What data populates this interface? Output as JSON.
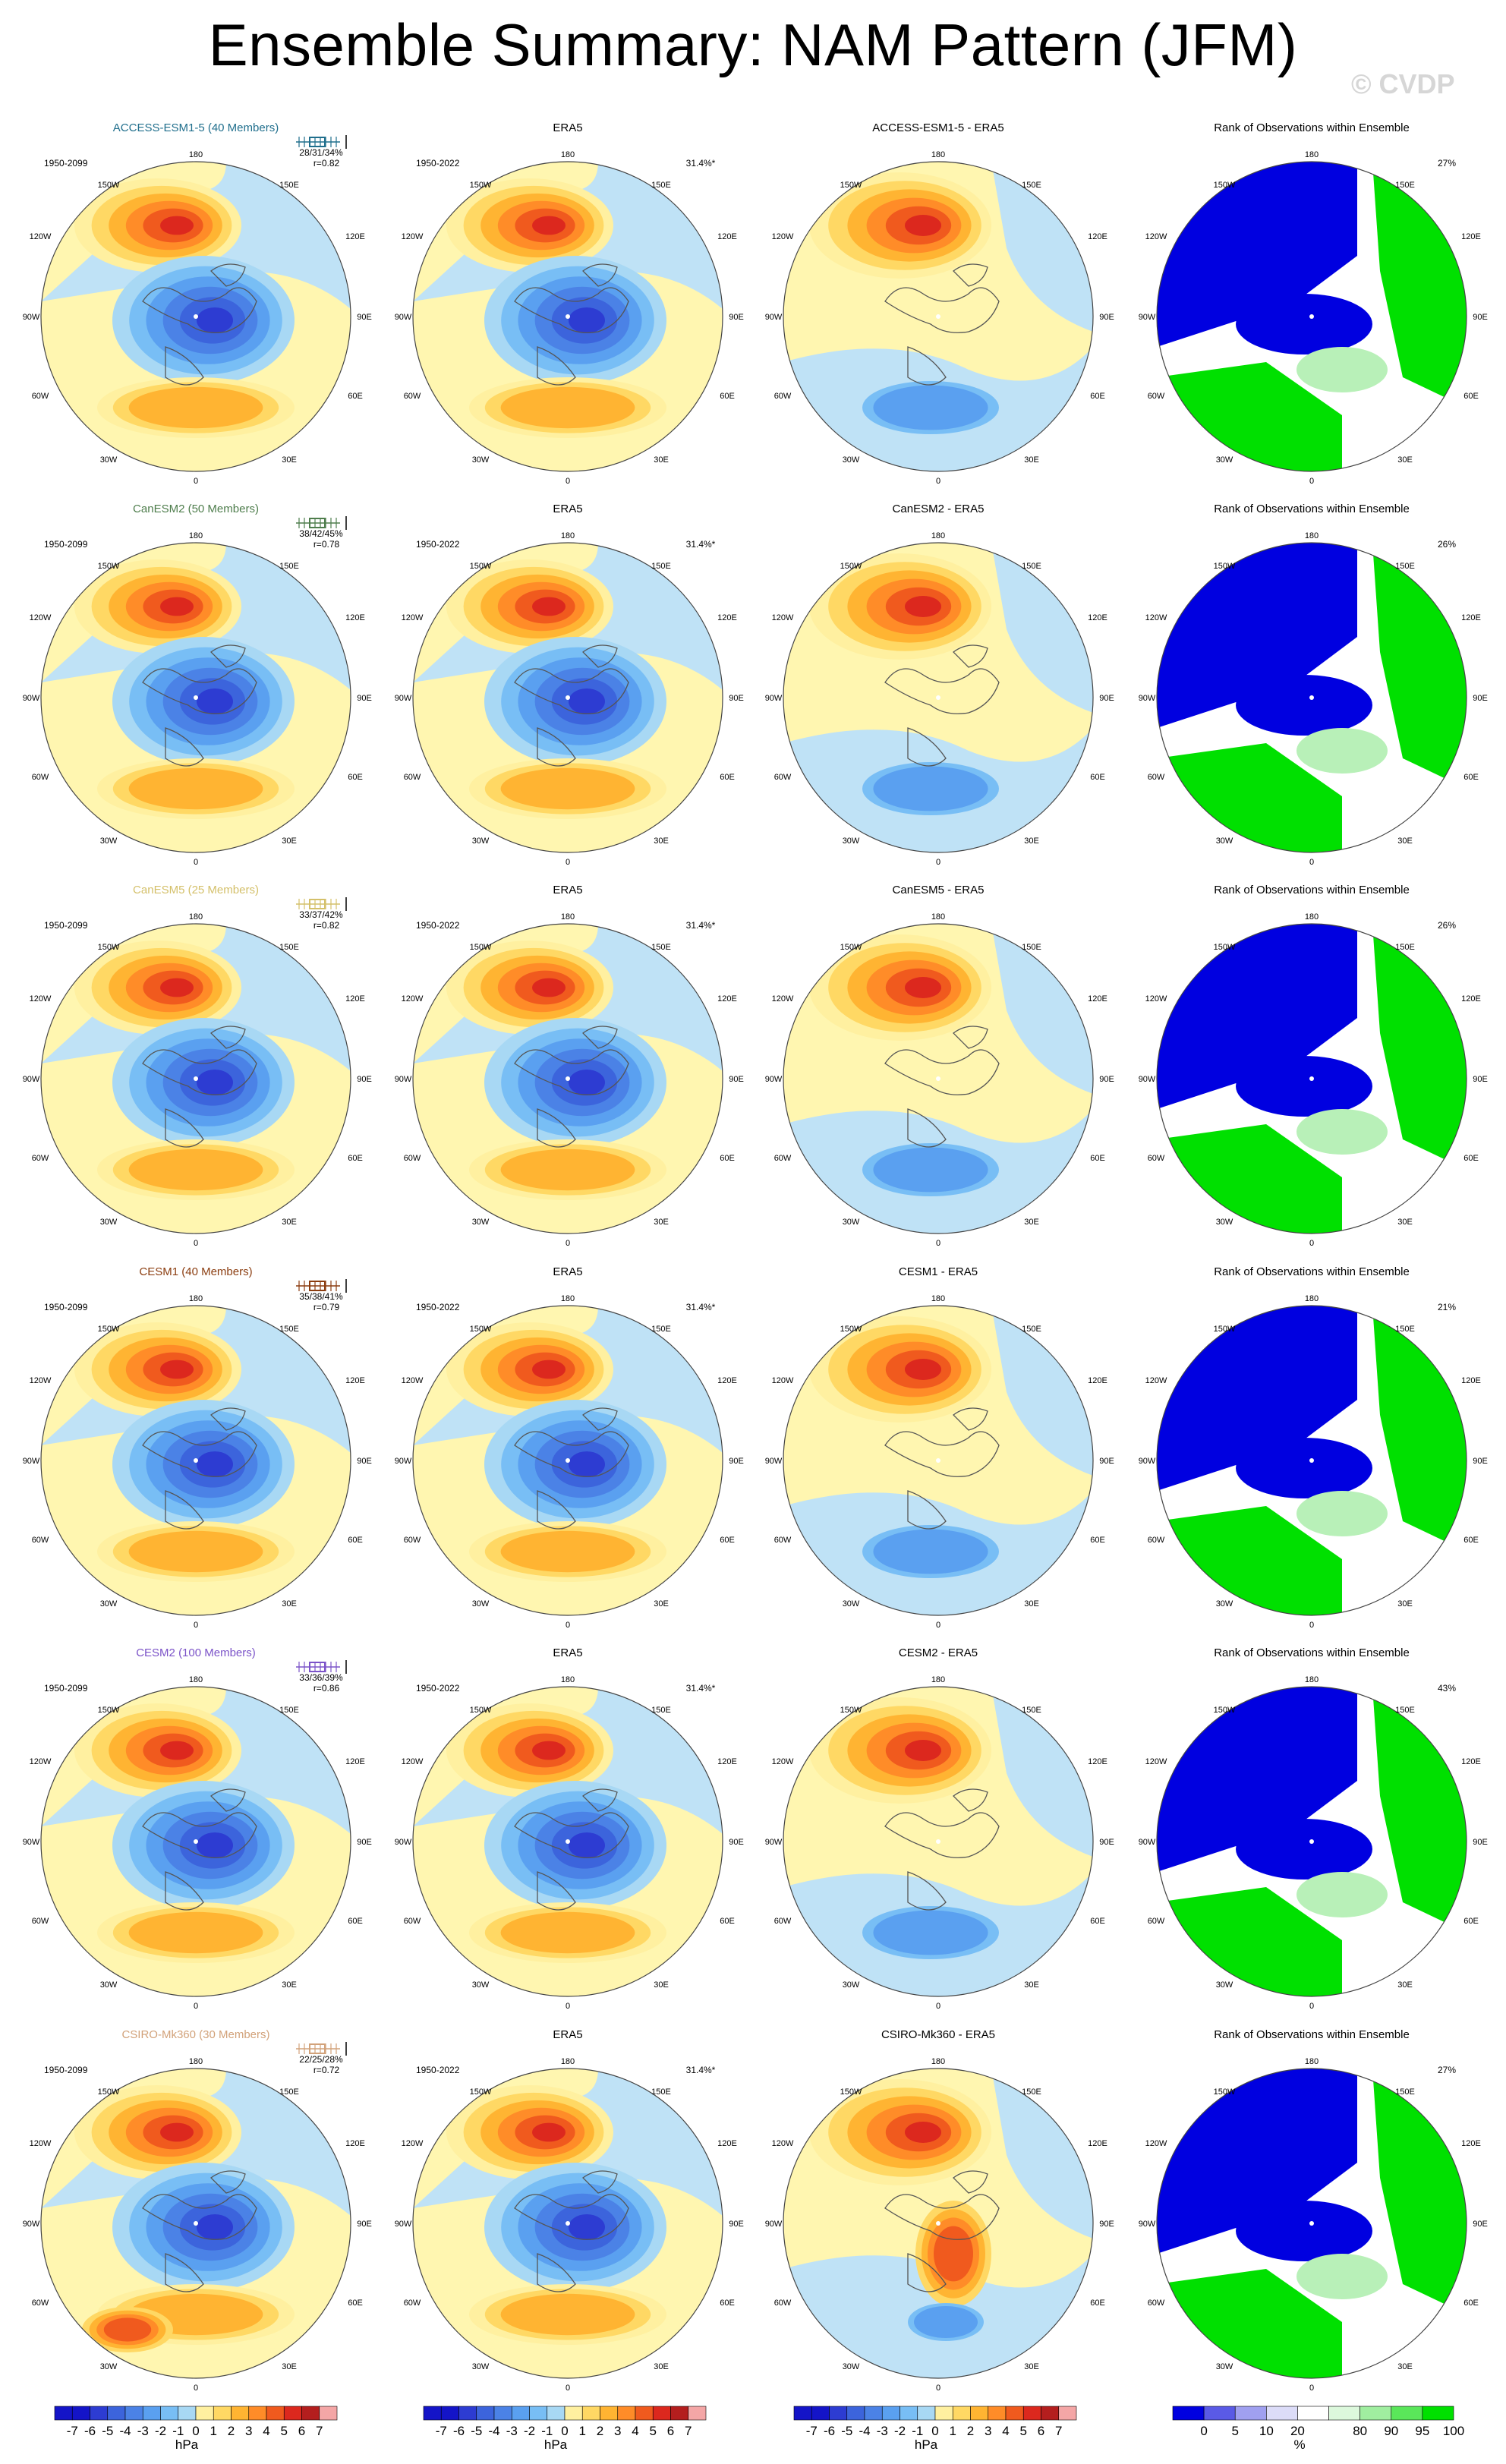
{
  "title": "Ensemble Summary: NAM Pattern (JFM)",
  "watermark": "© CVDP",
  "diff_suffix": " - ERA5",
  "rank_title": "Rank of Observations within Ensemble",
  "obs": {
    "name": "ERA5",
    "years": "1950-2022",
    "pct": "31.4%*"
  },
  "model_years": "1950-2099",
  "lon_labels": {
    "top": "180",
    "bottom": "0",
    "upper_left": "150W",
    "upper_right": "150E",
    "mid_upper_left": "120W",
    "mid_upper_right": "120E",
    "left": "90W",
    "right": "90E",
    "mid_lower_left": "60W",
    "mid_lower_right": "60E",
    "lower_left": "30W",
    "lower_right": "30E"
  },
  "colors": {
    "negative": [
      "#1414c8",
      "#2d3cd2",
      "#3c64dc",
      "#4b82e6",
      "#5aa0f0",
      "#78bef5",
      "#a8d8f4"
    ],
    "positive": [
      "#fff0a0",
      "#ffd864",
      "#ffb432",
      "#ff8c28",
      "#f05a1e",
      "#dc281e",
      "#b41e1e",
      "#f4a6a6"
    ],
    "rank_blue": "#0000e0",
    "rank_green": "#00e000",
    "label_teal": "#1f6e8c",
    "label_green": "#4e7d4c",
    "label_yellow": "#d4c06a",
    "label_brown": "#8b3d10",
    "label_purple": "#7b53c8",
    "label_tan": "#d2a27a"
  },
  "chart_data": {
    "type": "heatmap",
    "rows": [
      {
        "model": "ACCESS-ESM1-5",
        "members": "ACCESS-ESM1-5 (40 Members)",
        "stats": "28/31/34%",
        "r": "r=0.82",
        "rank_pct": "27%",
        "label_color": "teal"
      },
      {
        "model": "CanESM2",
        "members": "CanESM2 (50 Members)",
        "stats": "38/42/45%",
        "r": "r=0.78",
        "rank_pct": "26%",
        "label_color": "green"
      },
      {
        "model": "CanESM5",
        "members": "CanESM5 (25 Members)",
        "stats": "33/37/42%",
        "r": "r=0.82",
        "rank_pct": "26%",
        "label_color": "yellow"
      },
      {
        "model": "CESM1",
        "members": "CESM1 (40 Members)",
        "stats": "35/38/41%",
        "r": "r=0.79",
        "rank_pct": "21%",
        "label_color": "brown"
      },
      {
        "model": "CESM2",
        "members": "CESM2 (100 Members)",
        "stats": "33/36/39%",
        "r": "r=0.86",
        "rank_pct": "43%",
        "label_color": "purple"
      },
      {
        "model": "CSIRO-Mk360",
        "members": "CSIRO-Mk360 (30 Members)",
        "stats": "22/25/28%",
        "r": "r=0.72",
        "rank_pct": "27%",
        "label_color": "tan"
      }
    ],
    "colorbar_hpa": {
      "ticks": [
        "-7",
        "-6",
        "-5",
        "-4",
        "-3",
        "-2",
        "-1",
        "0",
        "1",
        "2",
        "3",
        "4",
        "5",
        "6",
        "7"
      ],
      "unit": "hPa"
    },
    "colorbar_rank": {
      "ticks": [
        "0",
        "5",
        "10",
        "20",
        "80",
        "90",
        "95",
        "100"
      ],
      "unit": "%"
    }
  }
}
